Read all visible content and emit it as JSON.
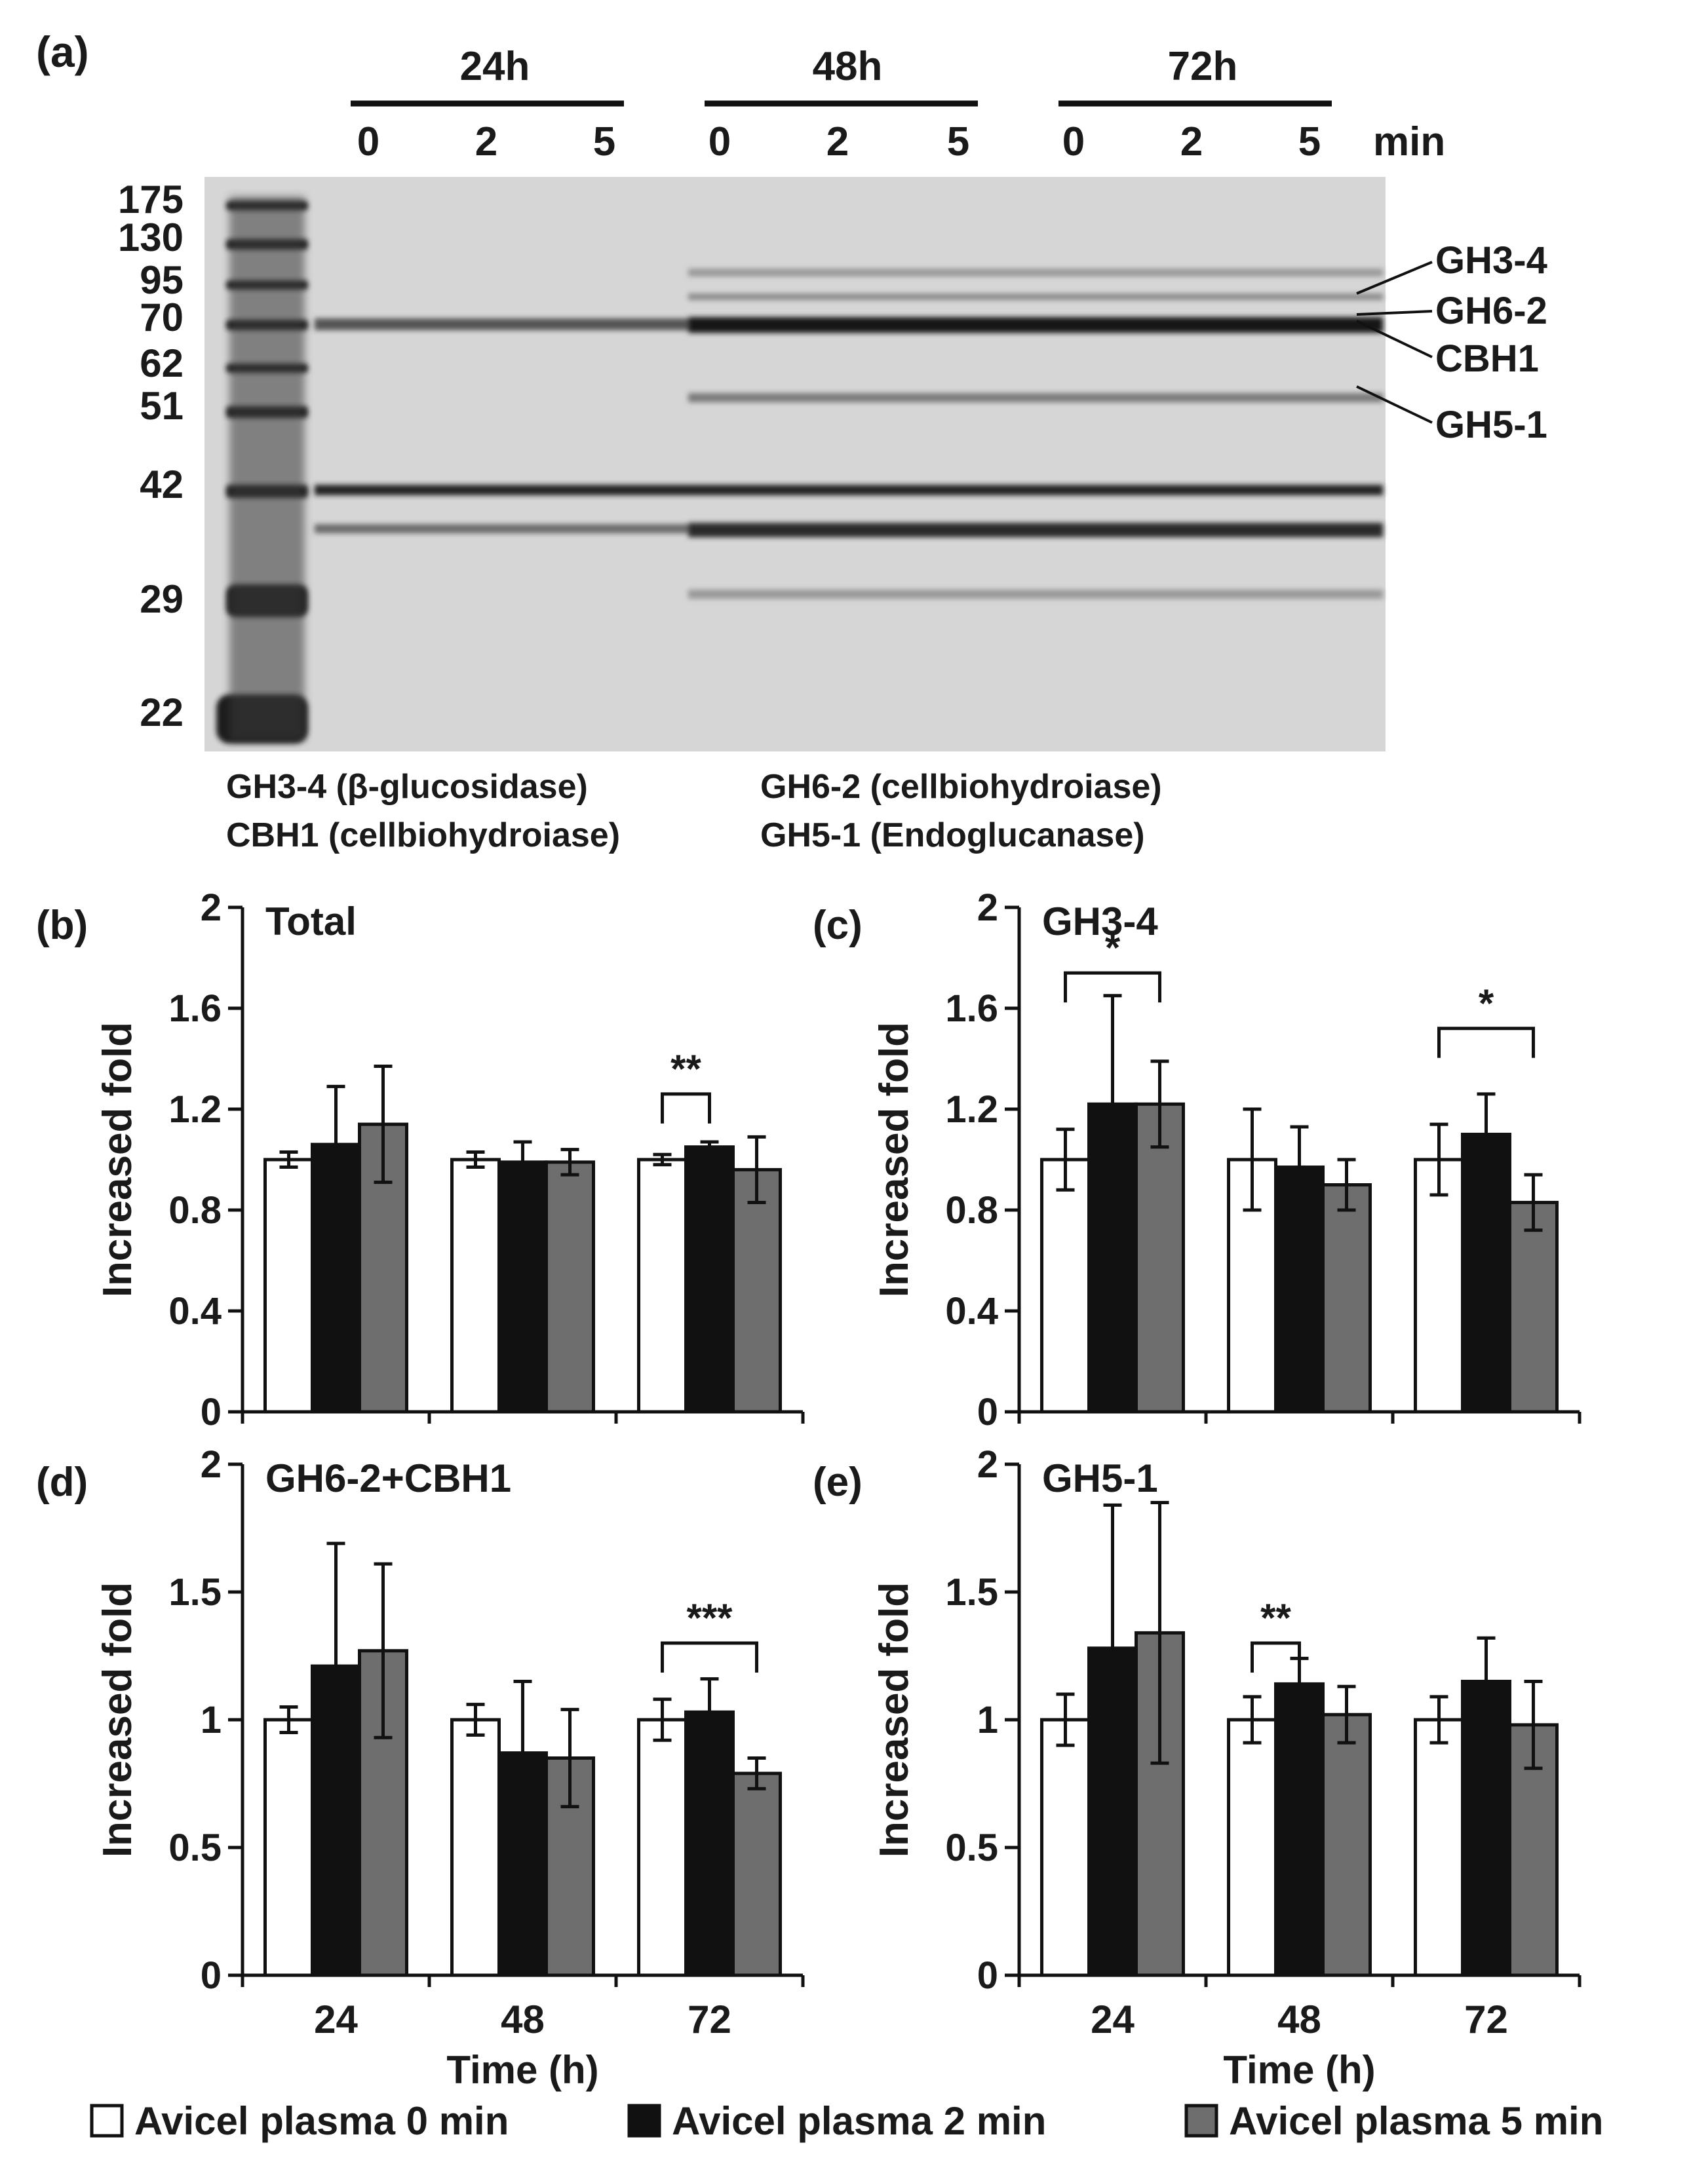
{
  "colors": {
    "s0": "#ffffff",
    "s1": "#111111",
    "s2": "#6e6e6e",
    "ink": "#1a1a1a"
  },
  "gel": {
    "panel_label": "(a)",
    "time_groups": [
      "24h",
      "48h",
      "72h"
    ],
    "lane_labels": [
      "0",
      "2",
      "5",
      "0",
      "2",
      "5",
      "0",
      "2",
      "5"
    ],
    "lane_unit": "min",
    "markers": [
      "175",
      "130",
      "95",
      "70",
      "62",
      "51",
      "42",
      "29",
      "22"
    ],
    "band_labels": [
      "GH3-4",
      "GH6-2",
      "CBH1",
      "GH5-1"
    ],
    "caption": [
      "GH3-4 (β-glucosidase)",
      "CBH1 (cellbiohydroiase)",
      "GH6-2 (cellbiohydroiase)",
      "GH5-1 (Endoglucanase)"
    ]
  },
  "legend": [
    "Avicel plasma 0 min",
    "Avicel plasma 2 min",
    "Avicel plasma 5 min"
  ],
  "chart_data": [
    {
      "type": "bar",
      "panel": "(b)",
      "title": "Total",
      "xlabel": "",
      "ylabel": "Increased fold",
      "categories": [
        "24",
        "48",
        "72"
      ],
      "ylim": [
        0,
        2
      ],
      "yticks": [
        "0",
        "0.4",
        "0.8",
        "1.2",
        "1.6",
        "2"
      ],
      "series": [
        {
          "name": "Avicel plasma 0 min",
          "values": [
            1.0,
            1.0,
            1.0
          ],
          "errors": [
            0.03,
            0.03,
            0.02
          ]
        },
        {
          "name": "Avicel plasma 2 min",
          "values": [
            1.06,
            0.99,
            1.05
          ],
          "errors": [
            0.23,
            0.08,
            0.02
          ]
        },
        {
          "name": "Avicel plasma 5 min",
          "values": [
            1.14,
            0.99,
            0.96
          ],
          "errors": [
            0.23,
            0.05,
            0.13
          ]
        }
      ],
      "significance": [
        {
          "group": 2,
          "from": 0,
          "to": 1,
          "label": "**",
          "y": 1.26
        }
      ]
    },
    {
      "type": "bar",
      "panel": "(c)",
      "title": "GH3-4",
      "xlabel": "",
      "ylabel": "Increased fold",
      "categories": [
        "24",
        "48",
        "72"
      ],
      "ylim": [
        0,
        2
      ],
      "yticks": [
        "0",
        "0.4",
        "0.8",
        "1.2",
        "1.6",
        "2"
      ],
      "series": [
        {
          "name": "Avicel plasma 0 min",
          "values": [
            1.0,
            1.0,
            1.0
          ],
          "errors": [
            0.12,
            0.2,
            0.14
          ]
        },
        {
          "name": "Avicel plasma 2 min",
          "values": [
            1.22,
            0.97,
            1.1
          ],
          "errors": [
            0.43,
            0.16,
            0.16
          ]
        },
        {
          "name": "Avicel plasma 5 min",
          "values": [
            1.22,
            0.9,
            0.83
          ],
          "errors": [
            0.17,
            0.1,
            0.11
          ]
        }
      ],
      "significance": [
        {
          "group": 0,
          "from": 0,
          "to": 2,
          "label": "*",
          "y": 1.74
        },
        {
          "group": 2,
          "from": 0,
          "to": 2,
          "label": "*",
          "y": 1.52
        }
      ]
    },
    {
      "type": "bar",
      "panel": "(d)",
      "title": "GH6-2+CBH1",
      "xlabel": "Time (h)",
      "ylabel": "Increased fold",
      "categories": [
        "24",
        "48",
        "72"
      ],
      "ylim": [
        0,
        2
      ],
      "yticks": [
        "0",
        "0.5",
        "1",
        "1.5",
        "2"
      ],
      "series": [
        {
          "name": "Avicel plasma 0 min",
          "values": [
            1.0,
            1.0,
            1.0
          ],
          "errors": [
            0.05,
            0.06,
            0.08
          ]
        },
        {
          "name": "Avicel plasma 2 min",
          "values": [
            1.21,
            0.87,
            1.03
          ],
          "errors": [
            0.48,
            0.28,
            0.13
          ]
        },
        {
          "name": "Avicel plasma 5 min",
          "values": [
            1.27,
            0.85,
            0.79
          ],
          "errors": [
            0.34,
            0.19,
            0.06
          ]
        }
      ],
      "significance": [
        {
          "group": 2,
          "from": 0,
          "to": 2,
          "label": "***",
          "y": 1.3
        }
      ]
    },
    {
      "type": "bar",
      "panel": "(e)",
      "title": "GH5-1",
      "xlabel": "Time (h)",
      "ylabel": "Increased fold",
      "categories": [
        "24",
        "48",
        "72"
      ],
      "ylim": [
        0,
        2
      ],
      "yticks": [
        "0",
        "0.5",
        "1",
        "1.5",
        "2"
      ],
      "series": [
        {
          "name": "Avicel plasma 0 min",
          "values": [
            1.0,
            1.0,
            1.0
          ],
          "errors": [
            0.1,
            0.09,
            0.09
          ]
        },
        {
          "name": "Avicel plasma 2 min",
          "values": [
            1.28,
            1.14,
            1.15
          ],
          "errors": [
            0.56,
            0.1,
            0.17
          ]
        },
        {
          "name": "Avicel plasma 5 min",
          "values": [
            1.34,
            1.02,
            0.98
          ],
          "errors": [
            0.51,
            0.11,
            0.17
          ]
        }
      ],
      "significance": [
        {
          "group": 1,
          "from": 0,
          "to": 1,
          "label": "**",
          "y": 1.3
        }
      ]
    }
  ]
}
